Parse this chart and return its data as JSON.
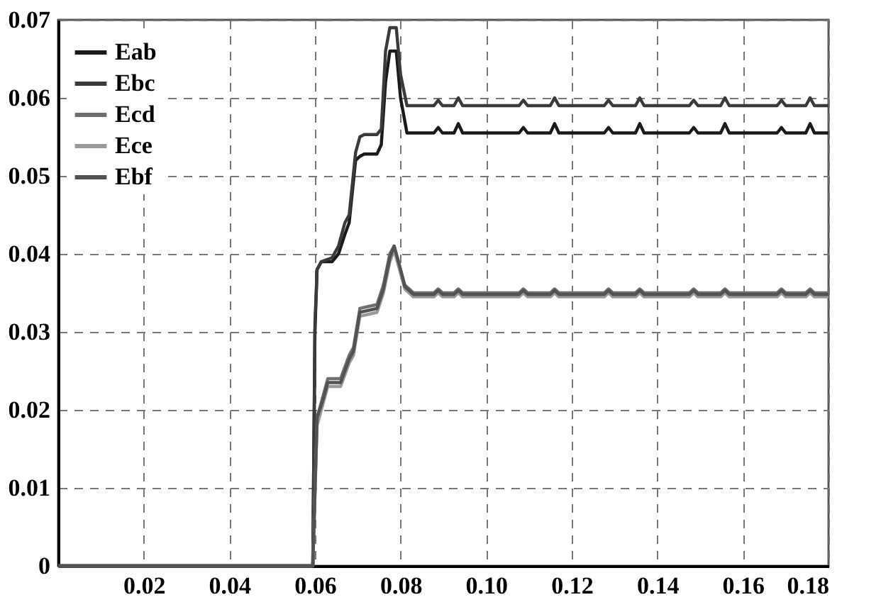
{
  "chart_data": {
    "type": "line",
    "xlim": [
      0,
      0.18
    ],
    "ylim": [
      0,
      0.07
    ],
    "xticks": [
      {
        "value": 0.02,
        "label": "0.02"
      },
      {
        "value": 0.04,
        "label": "0.04"
      },
      {
        "value": 0.06,
        "label": "0.06"
      },
      {
        "value": 0.08,
        "label": "0.08"
      },
      {
        "value": 0.1,
        "label": "0.10"
      },
      {
        "value": 0.12,
        "label": "0.12"
      },
      {
        "value": 0.14,
        "label": "0.14"
      },
      {
        "value": 0.16,
        "label": "0.16"
      },
      {
        "value": 0.18,
        "label": "0.18"
      }
    ],
    "yticks": [
      0,
      0.01,
      0.02,
      0.03,
      0.04,
      0.05,
      0.06,
      0.07
    ],
    "grid": true,
    "legend": "top left",
    "line_style": "solid",
    "marker": "none",
    "series": [
      {
        "name": "Eab",
        "color": "#1a1a1a",
        "x": [
          0,
          0.0595,
          0.06,
          0.0605,
          0.0615,
          0.064,
          0.0655,
          0.067,
          0.068,
          0.0695,
          0.0705,
          0.0715,
          0.0745,
          0.0755,
          0.0765,
          0.0775,
          0.079,
          0.08,
          0.0815,
          0.0878,
          0.0888,
          0.0898,
          0.0925,
          0.0935,
          0.0945,
          0.1077,
          0.1087,
          0.1097,
          0.115,
          0.116,
          0.117,
          0.1276,
          0.1286,
          0.1296,
          0.1349,
          0.1359,
          0.1369,
          0.1475,
          0.1485,
          0.1495,
          0.1548,
          0.1558,
          0.1568,
          0.168,
          0.169,
          0.17,
          0.1747,
          0.1757,
          0.1767,
          0.18
        ],
        "values": [
          0,
          0,
          0.03,
          0.038,
          0.039,
          0.039,
          0.04,
          0.0425,
          0.044,
          0.052,
          0.0525,
          0.0528,
          0.0528,
          0.054,
          0.062,
          0.066,
          0.066,
          0.06,
          0.0555,
          0.0555,
          0.0562,
          0.0555,
          0.0555,
          0.0567,
          0.0555,
          0.0555,
          0.0562,
          0.0555,
          0.0555,
          0.0567,
          0.0555,
          0.0555,
          0.0562,
          0.0555,
          0.0555,
          0.0567,
          0.0555,
          0.0555,
          0.0562,
          0.0555,
          0.0555,
          0.0567,
          0.0555,
          0.0555,
          0.0562,
          0.0555,
          0.0555,
          0.0567,
          0.0555,
          0.0555
        ]
      },
      {
        "name": "Ebc",
        "color": "#3a3a3a",
        "x": [
          0,
          0.0595,
          0.06,
          0.0605,
          0.0615,
          0.064,
          0.0655,
          0.067,
          0.068,
          0.0695,
          0.0705,
          0.0715,
          0.0745,
          0.0755,
          0.0765,
          0.0775,
          0.079,
          0.08,
          0.0815,
          0.0878,
          0.0888,
          0.0898,
          0.0925,
          0.0935,
          0.0945,
          0.1077,
          0.1087,
          0.1097,
          0.115,
          0.116,
          0.117,
          0.1276,
          0.1286,
          0.1296,
          0.1349,
          0.1359,
          0.1369,
          0.1475,
          0.1485,
          0.1495,
          0.1548,
          0.1558,
          0.1568,
          0.168,
          0.169,
          0.17,
          0.1747,
          0.1757,
          0.1767,
          0.18
        ],
        "values": [
          0,
          0,
          0.031,
          0.038,
          0.039,
          0.0395,
          0.041,
          0.044,
          0.045,
          0.053,
          0.055,
          0.0553,
          0.0553,
          0.056,
          0.066,
          0.069,
          0.069,
          0.063,
          0.059,
          0.059,
          0.0597,
          0.059,
          0.059,
          0.06,
          0.059,
          0.059,
          0.0597,
          0.059,
          0.059,
          0.06,
          0.059,
          0.059,
          0.0597,
          0.059,
          0.059,
          0.06,
          0.059,
          0.059,
          0.0597,
          0.059,
          0.059,
          0.06,
          0.059,
          0.059,
          0.0597,
          0.059,
          0.059,
          0.06,
          0.059,
          0.059
        ]
      },
      {
        "name": "Ecd",
        "color": "#6e6e6e",
        "x": [
          0,
          0.0595,
          0.0605,
          0.062,
          0.063,
          0.066,
          0.068,
          0.069,
          0.0705,
          0.0745,
          0.076,
          0.0775,
          0.0785,
          0.08,
          0.081,
          0.083,
          0.0878,
          0.0888,
          0.0898,
          0.0925,
          0.0935,
          0.0945,
          0.1077,
          0.1087,
          0.1097,
          0.115,
          0.116,
          0.117,
          0.1276,
          0.1286,
          0.1296,
          0.1349,
          0.1359,
          0.1369,
          0.1475,
          0.1485,
          0.1495,
          0.1548,
          0.1558,
          0.1568,
          0.168,
          0.169,
          0.17,
          0.1747,
          0.1757,
          0.1767,
          0.18
        ],
        "values": [
          0,
          0,
          0.019,
          0.022,
          0.024,
          0.024,
          0.027,
          0.028,
          0.033,
          0.0335,
          0.036,
          0.04,
          0.041,
          0.038,
          0.036,
          0.035,
          0.035,
          0.0355,
          0.035,
          0.035,
          0.0355,
          0.035,
          0.035,
          0.0355,
          0.035,
          0.035,
          0.0355,
          0.035,
          0.035,
          0.0355,
          0.035,
          0.035,
          0.0355,
          0.035,
          0.035,
          0.0355,
          0.035,
          0.035,
          0.0355,
          0.035,
          0.035,
          0.0355,
          0.035,
          0.035,
          0.0355,
          0.035,
          0.035
        ]
      },
      {
        "name": "Ece",
        "color": "#9a9a9a",
        "x": [
          0,
          0.0595,
          0.0605,
          0.062,
          0.063,
          0.066,
          0.068,
          0.069,
          0.0705,
          0.0745,
          0.076,
          0.0775,
          0.0785,
          0.08,
          0.081,
          0.083,
          0.0878,
          0.0888,
          0.0898,
          0.0925,
          0.0935,
          0.0945,
          0.1077,
          0.1087,
          0.1097,
          0.115,
          0.116,
          0.117,
          0.1276,
          0.1286,
          0.1296,
          0.1349,
          0.1359,
          0.1369,
          0.1475,
          0.1485,
          0.1495,
          0.1548,
          0.1558,
          0.1568,
          0.168,
          0.169,
          0.17,
          0.1747,
          0.1757,
          0.1767,
          0.18
        ],
        "values": [
          0,
          0,
          0.018,
          0.021,
          0.023,
          0.023,
          0.026,
          0.027,
          0.032,
          0.0325,
          0.035,
          0.039,
          0.0405,
          0.0375,
          0.0355,
          0.0345,
          0.0345,
          0.035,
          0.0345,
          0.0345,
          0.035,
          0.0345,
          0.0345,
          0.035,
          0.0345,
          0.0345,
          0.035,
          0.0345,
          0.0345,
          0.035,
          0.0345,
          0.0345,
          0.035,
          0.0345,
          0.0345,
          0.035,
          0.0345,
          0.0345,
          0.035,
          0.0345,
          0.0345,
          0.035,
          0.0345,
          0.0345,
          0.035,
          0.0345,
          0.0345
        ]
      },
      {
        "name": "Ebf",
        "color": "#525252",
        "x": [
          0,
          0.0595,
          0.0605,
          0.062,
          0.063,
          0.066,
          0.068,
          0.069,
          0.0705,
          0.0745,
          0.076,
          0.0775,
          0.0785,
          0.08,
          0.081,
          0.083,
          0.0878,
          0.0888,
          0.0898,
          0.0925,
          0.0935,
          0.0945,
          0.1077,
          0.1087,
          0.1097,
          0.115,
          0.116,
          0.117,
          0.1276,
          0.1286,
          0.1296,
          0.1349,
          0.1359,
          0.1369,
          0.1475,
          0.1485,
          0.1495,
          0.1548,
          0.1558,
          0.1568,
          0.168,
          0.169,
          0.17,
          0.1747,
          0.1757,
          0.1767,
          0.18
        ],
        "values": [
          0,
          0,
          0.019,
          0.0215,
          0.0235,
          0.0235,
          0.0265,
          0.0275,
          0.0325,
          0.033,
          0.0355,
          0.0395,
          0.041,
          0.038,
          0.0358,
          0.0348,
          0.0348,
          0.0353,
          0.0348,
          0.0348,
          0.0353,
          0.0348,
          0.0348,
          0.0353,
          0.0348,
          0.0348,
          0.0353,
          0.0348,
          0.0348,
          0.0353,
          0.0348,
          0.0348,
          0.0353,
          0.0348,
          0.0348,
          0.0353,
          0.0348,
          0.0348,
          0.0353,
          0.0348,
          0.0348,
          0.0353,
          0.0348,
          0.0348,
          0.0353,
          0.0348,
          0.0348
        ]
      }
    ]
  }
}
